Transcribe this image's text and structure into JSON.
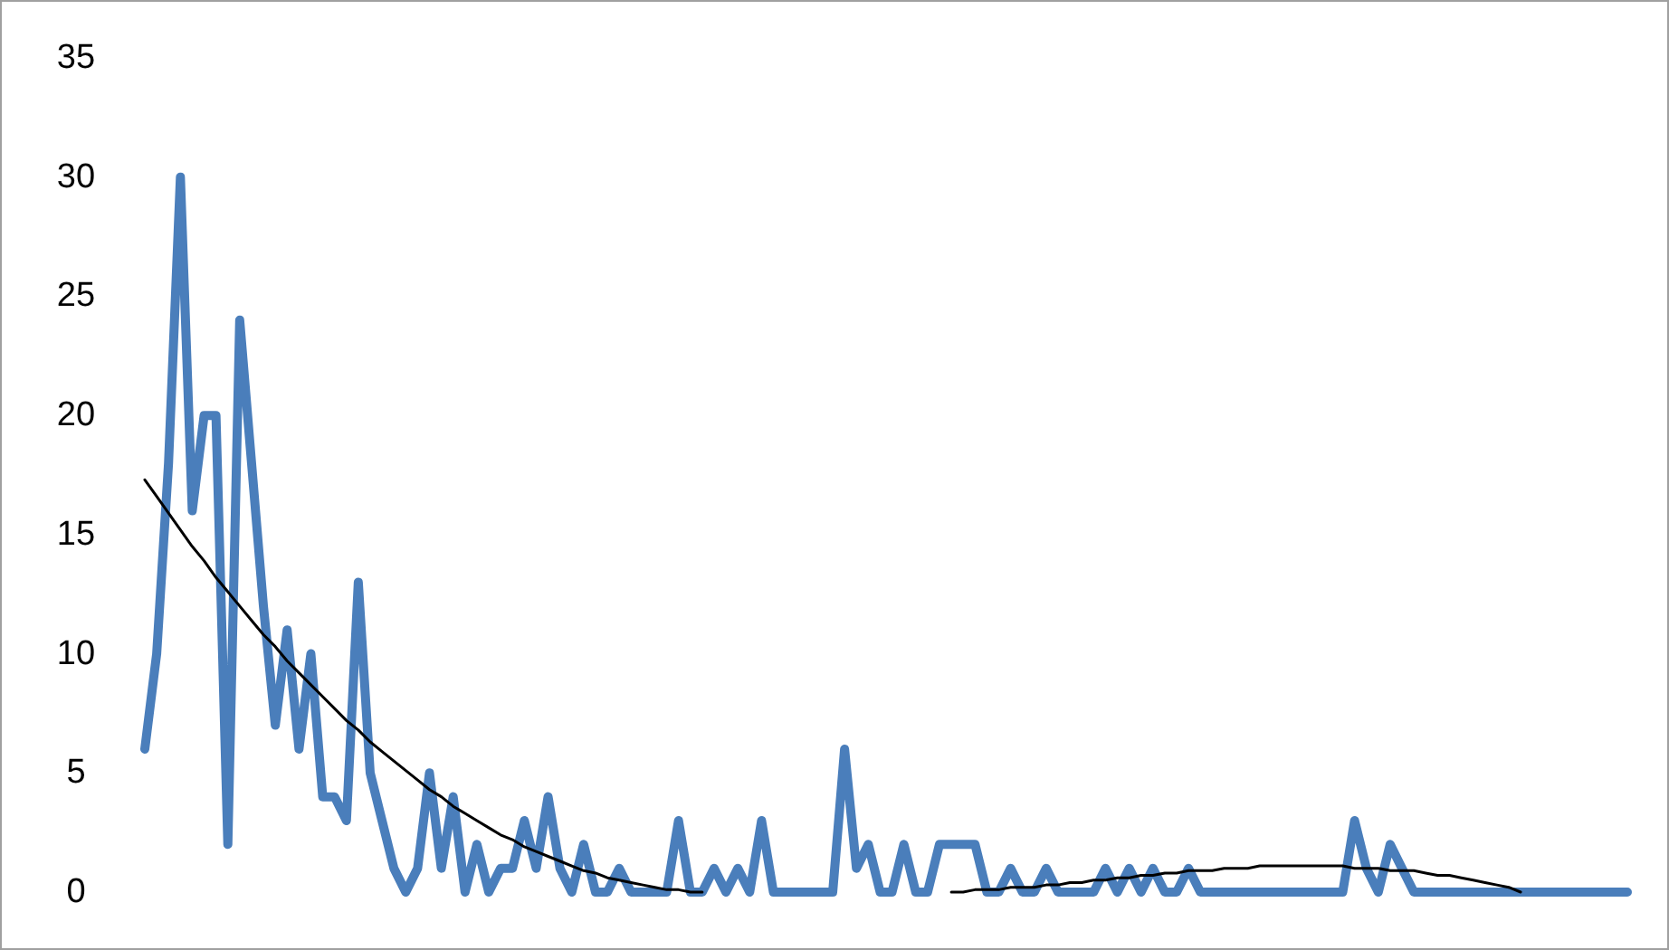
{
  "chart_data": {
    "type": "line",
    "categories": [
      null,
      null,
      null,
      null,
      null,
      null,
      null,
      null,
      null,
      null,
      null,
      null,
      null,
      null,
      null,
      null,
      null,
      null,
      null,
      null,
      null,
      null,
      null,
      null,
      null,
      null,
      null,
      null,
      null,
      null,
      null,
      null,
      null,
      null,
      null,
      null,
      null,
      null,
      null,
      null,
      null,
      null,
      null,
      null,
      null,
      null,
      null,
      null,
      null,
      null,
      null,
      null,
      null,
      null,
      null,
      null,
      null,
      null,
      null,
      null,
      null,
      null,
      null,
      null,
      null,
      null,
      null,
      null,
      null,
      null,
      null,
      null,
      null,
      null,
      null,
      null,
      null,
      null,
      null,
      null,
      null,
      null,
      null,
      null,
      null,
      null,
      null,
      null,
      null,
      null,
      null,
      null,
      null,
      null,
      null,
      null,
      null,
      null,
      null,
      null,
      null,
      null,
      null,
      null,
      null,
      null,
      null,
      null,
      null,
      null,
      null,
      null,
      null,
      null,
      null,
      null,
      null,
      null,
      null,
      null,
      null,
      null,
      null,
      null,
      null,
      null
    ],
    "series": [
      {
        "color": "#4a7ebb",
        "values": [
          6,
          10,
          18,
          30,
          16,
          20,
          20,
          2,
          24,
          18,
          12,
          7,
          11,
          6,
          10,
          4,
          4,
          3,
          13,
          5,
          3,
          1,
          0,
          1,
          5,
          1,
          4,
          0,
          2,
          0,
          1,
          1,
          3,
          1,
          4,
          1,
          0,
          2,
          0,
          0,
          1,
          0,
          0,
          0,
          0,
          3,
          0,
          0,
          1,
          0,
          1,
          0,
          3,
          0,
          0,
          0,
          0,
          0,
          0,
          6,
          1,
          2,
          0,
          0,
          2,
          0,
          0,
          2,
          2,
          2,
          2,
          0,
          0,
          1,
          0,
          0,
          1,
          0,
          0,
          0,
          0,
          1,
          0,
          1,
          0,
          1,
          0,
          0,
          1,
          0,
          0,
          0,
          0,
          0,
          0,
          0,
          0,
          0,
          0,
          0,
          0,
          0,
          3,
          1,
          0,
          2,
          1,
          0,
          0,
          0,
          0,
          0,
          0,
          0,
          0,
          0,
          0,
          0,
          0,
          0,
          0,
          0,
          0,
          0,
          0,
          0
        ]
      },
      {
        "type": "line",
        "color": "#000000",
        "values": [
          17.3,
          16.6,
          15.9,
          15.2,
          14.5,
          13.9,
          13.2,
          12.6,
          12.0,
          11.4,
          10.8,
          10.3,
          9.7,
          9.2,
          8.7,
          8.2,
          7.7,
          7.2,
          6.8,
          6.3,
          5.9,
          5.5,
          5.1,
          4.7,
          4.3,
          4.0,
          3.6,
          3.3,
          3.0,
          2.7,
          2.4,
          2.2,
          1.9,
          1.7,
          1.5,
          1.3,
          1.1,
          0.9,
          0.8,
          0.6,
          0.5,
          0.4,
          0.3,
          0.2,
          0.1,
          0.1,
          0,
          0,
          null,
          null,
          null,
          null,
          null,
          null,
          null,
          null,
          null,
          null,
          null,
          null,
          null,
          null,
          null,
          null,
          null,
          null,
          null,
          null,
          null,
          null,
          null,
          null,
          null,
          null,
          null,
          null,
          null,
          null,
          null,
          null,
          null,
          null,
          null,
          null,
          null,
          null,
          null,
          null,
          null,
          null,
          null,
          null,
          null,
          null,
          null,
          null,
          null,
          null,
          null,
          null,
          null,
          null,
          null,
          null,
          null,
          null,
          null,
          null,
          null,
          null,
          null,
          null,
          null,
          null,
          null,
          null,
          null,
          null,
          null,
          null,
          null,
          null,
          null,
          null,
          null,
          null
        ]
      },
      {
        "type": "line",
        "color": "#000000",
        "values": [
          null,
          null,
          null,
          null,
          null,
          null,
          null,
          null,
          null,
          null,
          null,
          null,
          null,
          null,
          null,
          null,
          null,
          null,
          null,
          null,
          null,
          null,
          null,
          null,
          null,
          null,
          null,
          null,
          null,
          null,
          null,
          null,
          null,
          null,
          null,
          null,
          null,
          null,
          null,
          null,
          null,
          null,
          null,
          null,
          null,
          null,
          null,
          null,
          null,
          null,
          null,
          null,
          null,
          null,
          null,
          null,
          null,
          null,
          null,
          null,
          null,
          null,
          null,
          null,
          null,
          null,
          null,
          null,
          0,
          0,
          0.1,
          0.1,
          0.1,
          0.2,
          0.2,
          0.2,
          0.3,
          0.3,
          0.4,
          0.4,
          0.5,
          0.5,
          0.6,
          0.6,
          0.7,
          0.7,
          0.8,
          0.8,
          0.9,
          0.9,
          0.9,
          1.0,
          1.0,
          1.0,
          1.1,
          1.1,
          1.1,
          1.1,
          1.1,
          1.1,
          1.1,
          1.1,
          1.0,
          1.0,
          1.0,
          0.9,
          0.9,
          0.9,
          0.8,
          0.7,
          0.7,
          0.6,
          0.5,
          0.4,
          0.3,
          0.2,
          0,
          null,
          null,
          null,
          null,
          null,
          null,
          null,
          null,
          null
        ]
      }
    ],
    "ylim": [
      0,
      35
    ],
    "yticks": [
      0,
      5,
      10,
      15,
      20,
      25,
      30,
      35
    ],
    "tick_labels": "y"
  }
}
